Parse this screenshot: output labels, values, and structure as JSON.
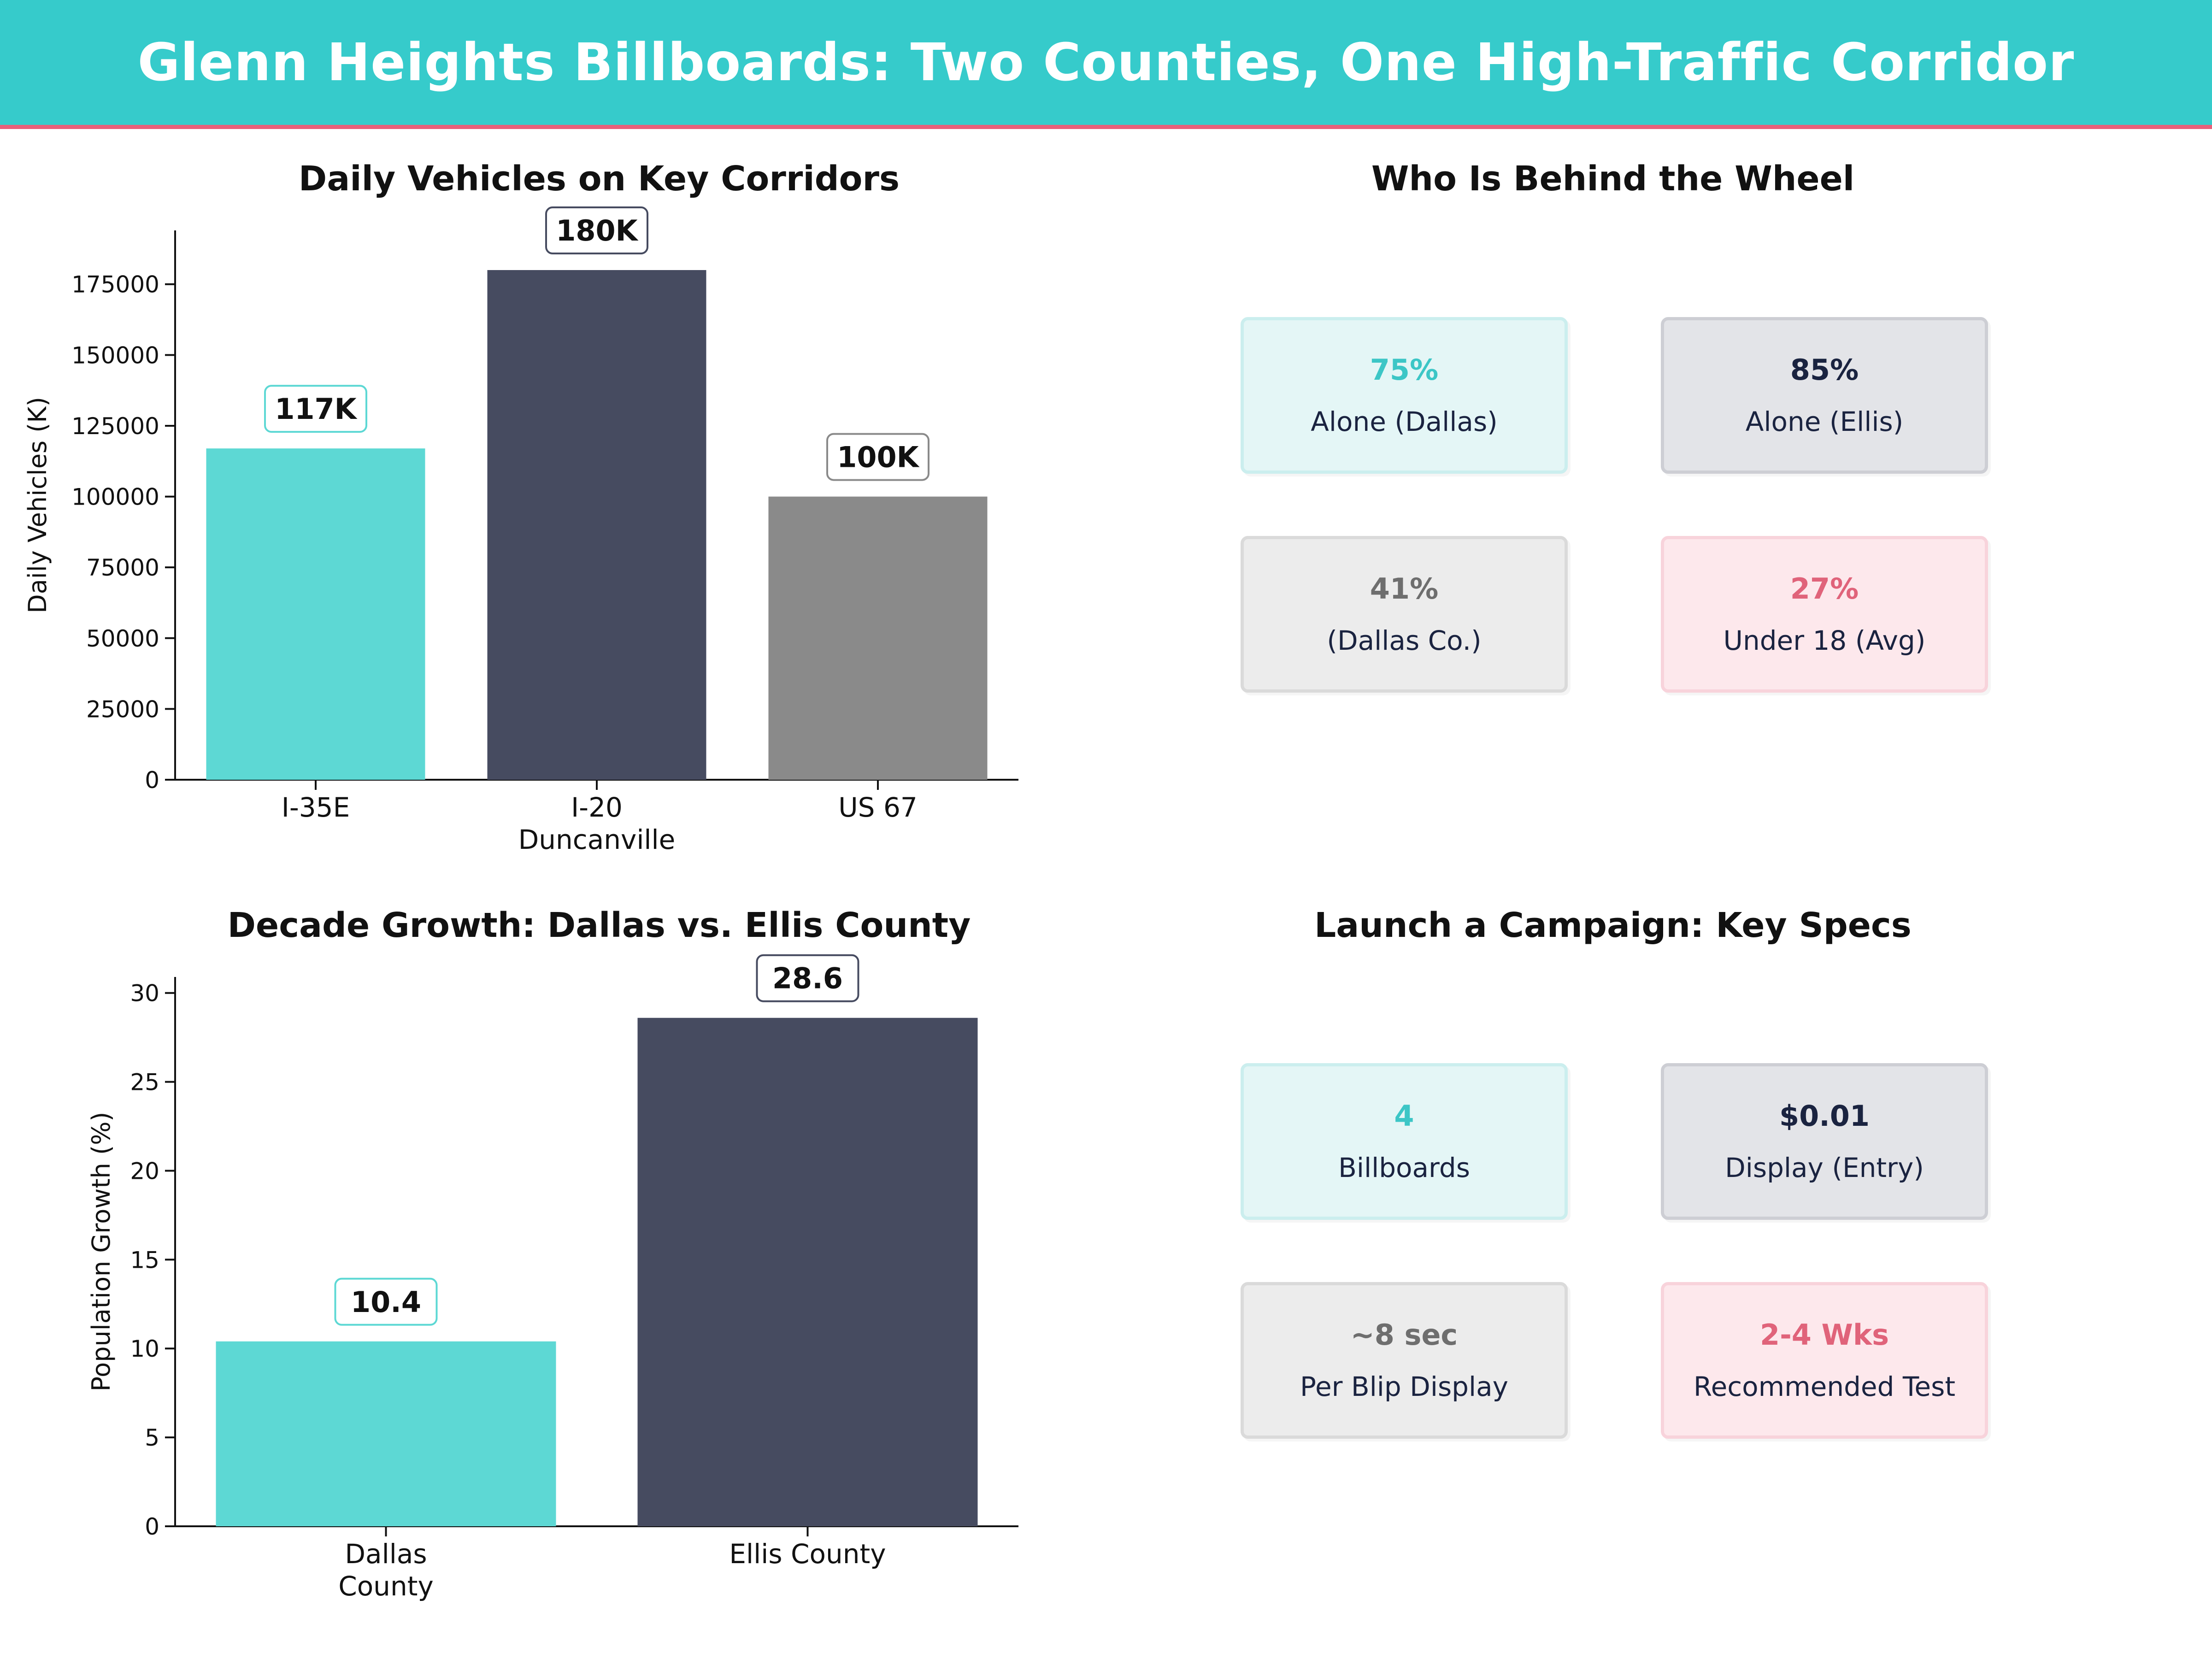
{
  "header": {
    "title": "Glenn Heights Billboards: Two Counties, One High-Traffic Corridor"
  },
  "colors": {
    "teal": "#5dd8d4",
    "navy": "#464b60",
    "gray": "#8a8a8a",
    "pink": "#e0637a",
    "header_bg": "#36cbcb"
  },
  "chart_data": [
    {
      "type": "bar",
      "title": "Daily Vehicles on Key Corridors",
      "xlabel": "",
      "ylabel": "Daily Vehicles (K)",
      "categories": [
        "I-35E",
        "I-20\nDuncanville",
        "US 67"
      ],
      "values": [
        117000,
        180000,
        100000
      ],
      "data_labels": [
        "117K",
        "180K",
        "100K"
      ],
      "bar_colors": [
        "#5dd8d4",
        "#464b60",
        "#8a8a8a"
      ],
      "label_border_colors": [
        "#5dd8d4",
        "#464b60",
        "#8a8a8a"
      ],
      "ylim": [
        0,
        194000
      ],
      "yticks": [
        0,
        25000,
        50000,
        75000,
        100000,
        125000,
        150000,
        175000
      ],
      "grid": false
    },
    {
      "type": "bar",
      "title": "Decade Growth: Dallas vs. Ellis County",
      "xlabel": "",
      "ylabel": "Population Growth (%)",
      "categories": [
        "Dallas\nCounty",
        "Ellis County"
      ],
      "values": [
        10.4,
        28.6
      ],
      "data_labels": [
        "10.4",
        "28.6"
      ],
      "bar_colors": [
        "#5dd8d4",
        "#464b60"
      ],
      "label_border_colors": [
        "#5dd8d4",
        "#464b60"
      ],
      "ylim": [
        0,
        30.9
      ],
      "yticks": [
        0,
        5,
        10,
        15,
        20,
        25,
        30
      ],
      "grid": false
    }
  ],
  "panels": {
    "drivers": {
      "title": "Who Is Behind the Wheel",
      "cards": [
        {
          "value": "75%",
          "label": "Alone (Dallas)",
          "color": "#3cc6c6"
        },
        {
          "value": "85%",
          "label": "Alone (Ellis)",
          "color": "#1a2340"
        },
        {
          "value": "41%",
          "label": "(Dallas Co.)",
          "color": "#6e6e6e"
        },
        {
          "value": "27%",
          "label": "Under 18 (Avg)",
          "color": "#e0637a"
        }
      ]
    },
    "specs": {
      "title": "Launch a Campaign: Key Specs",
      "cards": [
        {
          "value": "4",
          "label": "Billboards",
          "color": "#3cc6c6"
        },
        {
          "value": "$0.01",
          "label": "Display (Entry)",
          "color": "#1a2340"
        },
        {
          "value": "~8 sec",
          "label": "Per Blip Display",
          "color": "#6e6e6e"
        },
        {
          "value": "2-4 Wks",
          "label": "Recommended Test",
          "color": "#e0637a"
        }
      ]
    }
  }
}
